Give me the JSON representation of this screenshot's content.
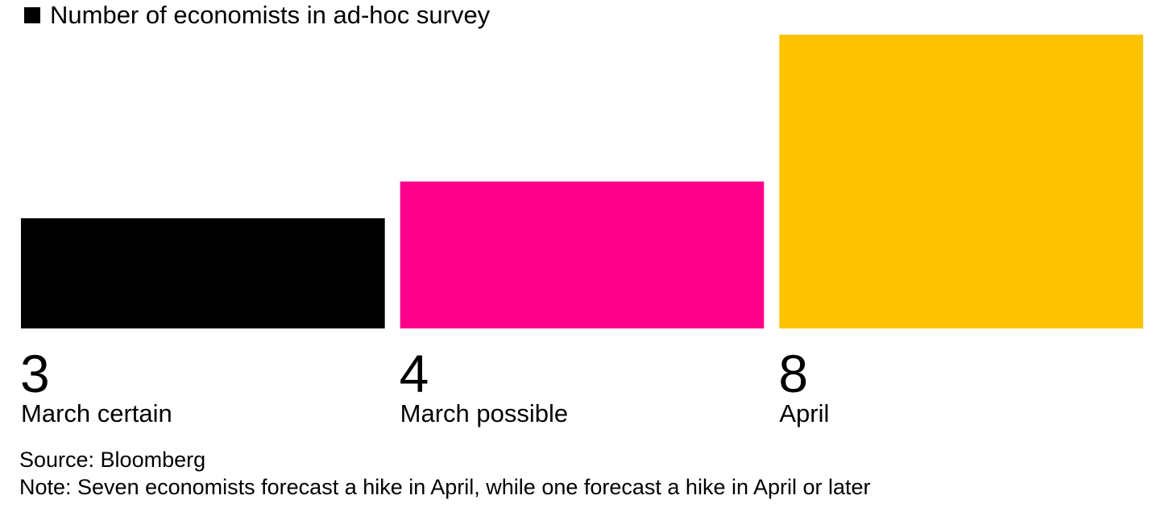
{
  "chart_data": {
    "type": "bar",
    "legend": [
      {
        "name": "Number of economists in ad-hoc survey",
        "color": "#000000"
      }
    ],
    "categories": [
      "March certain",
      "March possible",
      "April"
    ],
    "values": [
      3,
      4,
      8
    ],
    "colors": [
      "#000000",
      "#ff008a",
      "#fdc300"
    ],
    "ylim": [
      0,
      8
    ],
    "grid": false,
    "legend_placement": "top-left"
  },
  "footer": {
    "source": "Source: Bloomberg",
    "note": "Note: Seven economists forecast a hike in April, while one forecast a hike in April or later"
  }
}
